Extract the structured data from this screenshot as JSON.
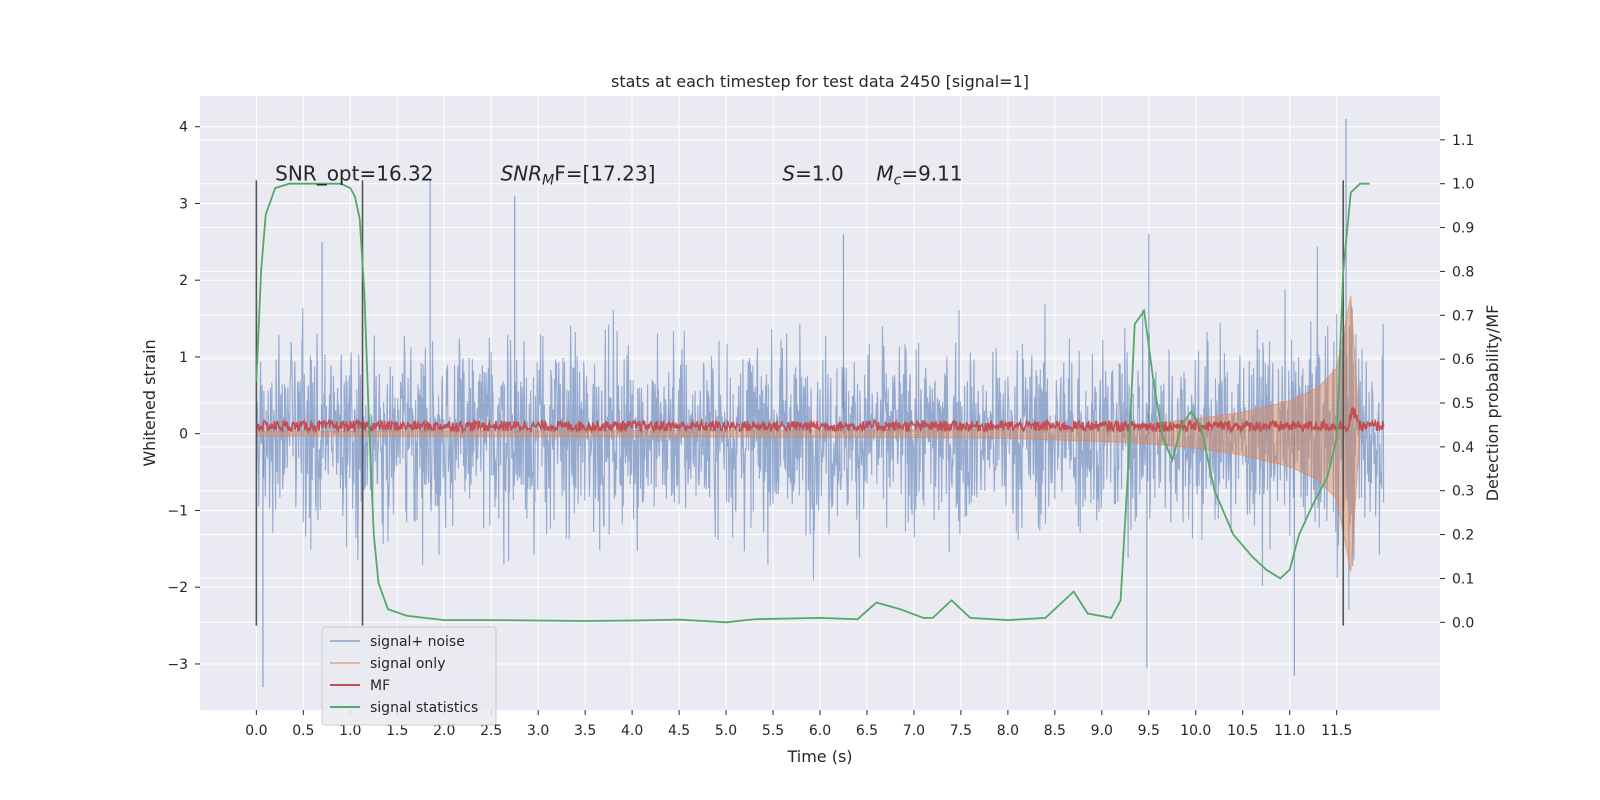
{
  "chart_data": {
    "type": "line",
    "title": "stats at each timestep for test data 2450 [signal=1]",
    "xlabel": "Time (s)",
    "ylabel": "Whitened strain",
    "ylabel_right": "Detection probability/MF",
    "xlim": [
      -0.6,
      12.6
    ],
    "ylim": [
      -3.6,
      4.4
    ],
    "ylim_right": [
      -0.2,
      1.2
    ],
    "x_ticks": [
      "0.0",
      "0.5",
      "1.0",
      "1.5",
      "2.0",
      "2.5",
      "3.0",
      "3.5",
      "4.0",
      "4.5",
      "5.0",
      "5.5",
      "6.0",
      "6.5",
      "7.0",
      "7.5",
      "8.0",
      "8.5",
      "9.0",
      "9.5",
      "10.0",
      "10.5",
      "11.0",
      "11.5"
    ],
    "y_ticks": [
      "4",
      "3",
      "2",
      "1",
      "0",
      "−1",
      "−2",
      "−3"
    ],
    "y_right_ticks": [
      "1.1",
      "1.0",
      "0.9",
      "0.8",
      "0.7",
      "0.6",
      "0.5",
      "0.4",
      "0.3",
      "0.2",
      "0.1",
      "0.0"
    ],
    "grid": true,
    "legend_position": "lower-left",
    "annotations": [
      {
        "text": "SNR_opt=16.32",
        "x": 0.2,
        "y": 3.3
      },
      {
        "text": "SNR",
        "sub": "M",
        "after": "F=[17.23]",
        "x": 2.6,
        "y": 3.3,
        "italic": true
      },
      {
        "text": "S",
        "after": "=1.0",
        "x": 5.6,
        "y": 3.3,
        "italic": true
      },
      {
        "text": "M",
        "sub": "c",
        "after": "=9.11",
        "x": 6.6,
        "y": 3.3,
        "italic": true
      }
    ],
    "vertical_lines": [
      {
        "x": 0.0,
        "y_from": -2.5,
        "y_to": 3.3
      },
      {
        "x": 1.13,
        "y_from": -2.5,
        "y_to": 3.3
      },
      {
        "x": 11.57,
        "y_from": -2.5,
        "y_to": 3.3
      }
    ],
    "series": [
      {
        "name": "signal+ noise",
        "color": "#4c72b0",
        "axis": "left",
        "description_values": {
          "x_range": [
            0.0,
            12.0
          ],
          "typical_band": [
            -1.6,
            1.6
          ],
          "peaks": [
            [
              0.7,
              2.5
            ],
            [
              1.85,
              3.3
            ],
            [
              2.75,
              3.1
            ],
            [
              6.25,
              2.6
            ],
            [
              9.5,
              2.6
            ],
            [
              11.6,
              4.1
            ],
            [
              0.07,
              -3.3
            ],
            [
              9.48,
              -3.05
            ],
            [
              11.05,
              -3.15
            ]
          ]
        }
      },
      {
        "name": "signal only",
        "color": "#dd8452",
        "axis": "left",
        "envelope": [
          [
            0.0,
            0.03
          ],
          [
            7.0,
            0.05
          ],
          [
            8.0,
            0.06
          ],
          [
            9.0,
            0.1
          ],
          [
            9.5,
            0.13
          ],
          [
            10.0,
            0.19
          ],
          [
            10.5,
            0.28
          ],
          [
            11.0,
            0.43
          ],
          [
            11.3,
            0.6
          ],
          [
            11.5,
            0.85
          ],
          [
            11.65,
            1.8
          ],
          [
            11.72,
            0.5
          ],
          [
            11.75,
            0.0
          ]
        ]
      },
      {
        "name": "MF",
        "color": "#c44e52",
        "axis": "left",
        "baseline": 0.1,
        "band": 0.07,
        "peak": [
          11.68,
          0.25
        ]
      },
      {
        "name": "signal statistics",
        "color": "#55a868",
        "axis": "right",
        "points": [
          [
            0.0,
            0.55
          ],
          [
            0.05,
            0.8
          ],
          [
            0.1,
            0.93
          ],
          [
            0.2,
            0.99
          ],
          [
            0.35,
            1.0
          ],
          [
            0.6,
            1.0
          ],
          [
            0.9,
            1.0
          ],
          [
            1.0,
            0.99
          ],
          [
            1.05,
            0.97
          ],
          [
            1.1,
            0.92
          ],
          [
            1.15,
            0.75
          ],
          [
            1.2,
            0.45
          ],
          [
            1.25,
            0.2
          ],
          [
            1.3,
            0.09
          ],
          [
            1.4,
            0.03
          ],
          [
            1.6,
            0.015
          ],
          [
            2.0,
            0.005
          ],
          [
            2.5,
            0.005
          ],
          [
            3.0,
            0.004
          ],
          [
            3.5,
            0.003
          ],
          [
            4.0,
            0.004
          ],
          [
            4.5,
            0.006
          ],
          [
            5.0,
            0.0
          ],
          [
            5.3,
            0.007
          ],
          [
            6.0,
            0.01
          ],
          [
            6.4,
            0.007
          ],
          [
            6.6,
            0.045
          ],
          [
            6.85,
            0.03
          ],
          [
            7.1,
            0.01
          ],
          [
            7.2,
            0.01
          ],
          [
            7.4,
            0.05
          ],
          [
            7.6,
            0.01
          ],
          [
            8.0,
            0.005
          ],
          [
            8.4,
            0.01
          ],
          [
            8.6,
            0.05
          ],
          [
            8.7,
            0.07
          ],
          [
            8.85,
            0.02
          ],
          [
            9.1,
            0.01
          ],
          [
            9.2,
            0.05
          ],
          [
            9.28,
            0.35
          ],
          [
            9.35,
            0.68
          ],
          [
            9.45,
            0.71
          ],
          [
            9.55,
            0.55
          ],
          [
            9.65,
            0.42
          ],
          [
            9.75,
            0.37
          ],
          [
            9.85,
            0.45
          ],
          [
            9.95,
            0.48
          ],
          [
            10.05,
            0.45
          ],
          [
            10.2,
            0.3
          ],
          [
            10.4,
            0.2
          ],
          [
            10.6,
            0.15
          ],
          [
            10.75,
            0.12
          ],
          [
            10.9,
            0.1
          ],
          [
            11.0,
            0.12
          ],
          [
            11.1,
            0.2
          ],
          [
            11.25,
            0.27
          ],
          [
            11.4,
            0.33
          ],
          [
            11.5,
            0.42
          ],
          [
            11.57,
            0.8
          ],
          [
            11.65,
            0.98
          ],
          [
            11.75,
            1.0
          ],
          [
            11.85,
            1.0
          ]
        ]
      }
    ]
  }
}
